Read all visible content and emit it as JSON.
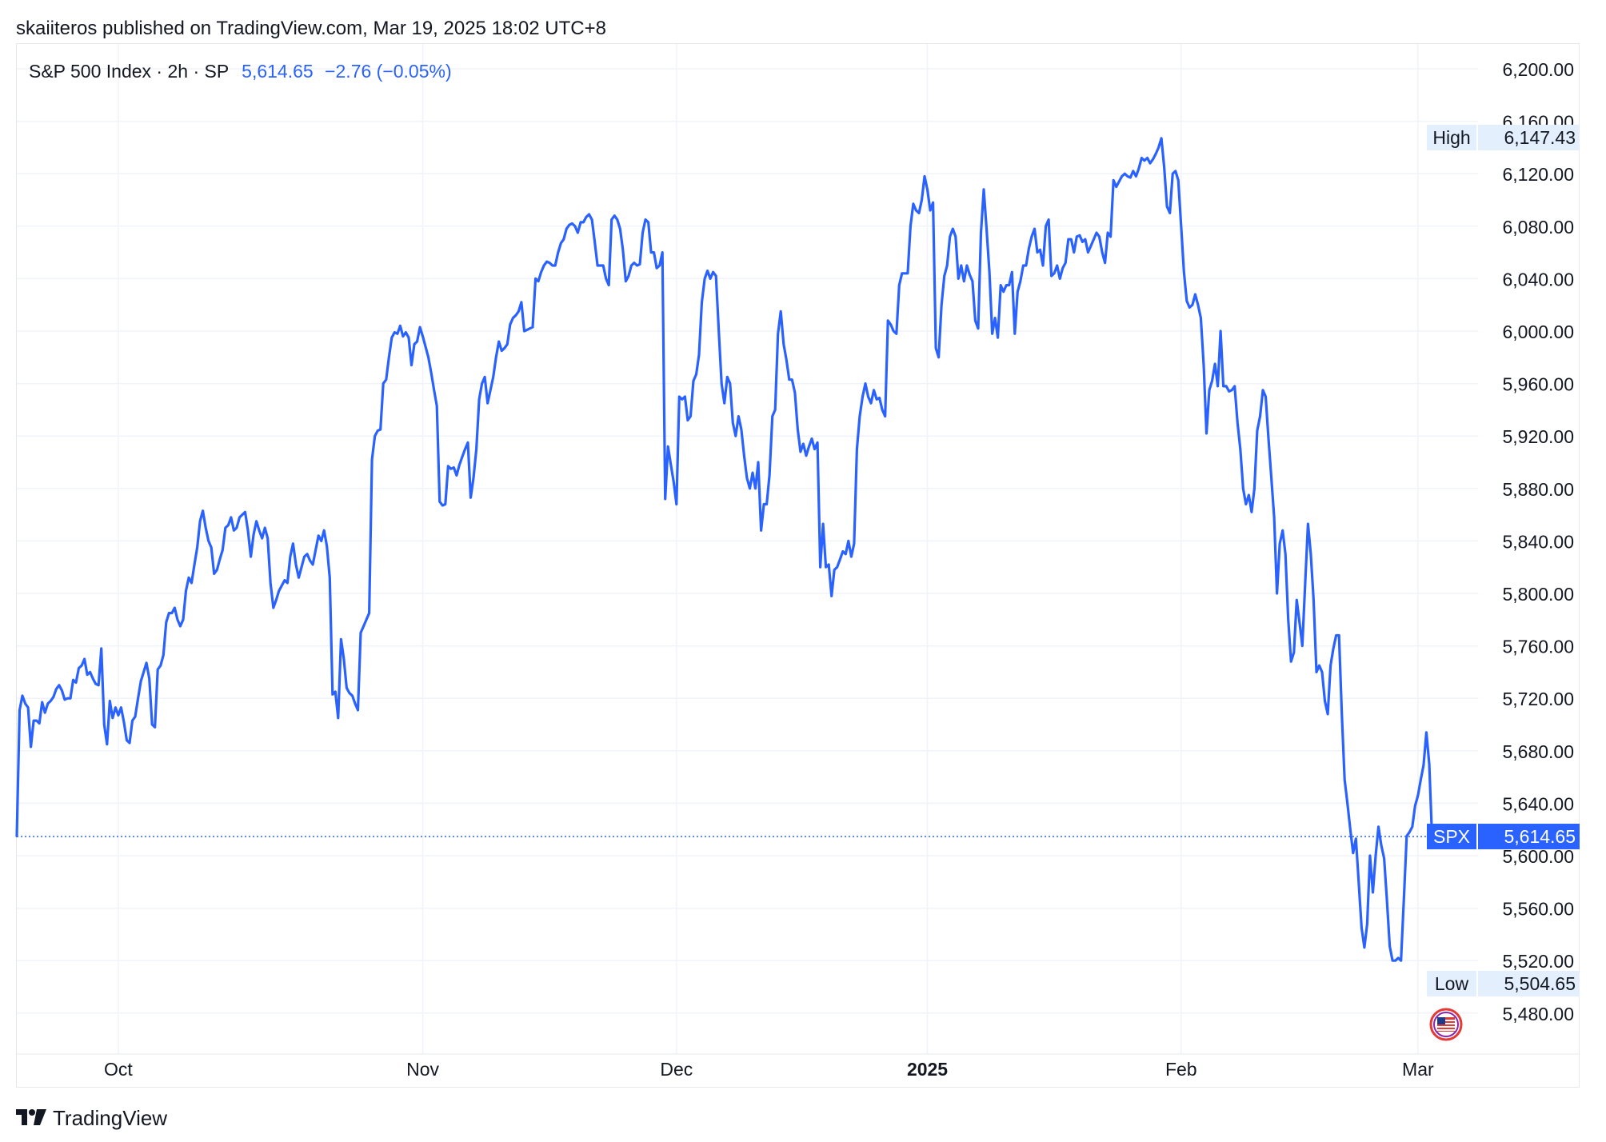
{
  "header": {
    "published_text": "skaiiteros published on TradingView.com, Mar 19, 2025 18:02 UTC+8"
  },
  "legend": {
    "symbol_text": "S&P 500 Index · 2h · SP",
    "last_price": "5,614.65",
    "change": "−2.76 (−0.05%)"
  },
  "footer": {
    "brand": "TradingView"
  },
  "colors": {
    "line": "#2962ff",
    "grid": "#f0f3fa",
    "text": "#131722",
    "tag_bg": "#e3effd"
  },
  "chart_data": {
    "type": "line",
    "title": "S&P 500 Index · 2h · SP",
    "xlabel": "",
    "ylabel": "",
    "ylim": [
      5455,
      6230
    ],
    "y_ticks": [
      "6,200.00",
      "6,160.00",
      "6,120.00",
      "6,080.00",
      "6,040.00",
      "6,000.00",
      "5,960.00",
      "5,920.00",
      "5,880.00",
      "5,840.00",
      "5,800.00",
      "5,760.00",
      "5,720.00",
      "5,680.00",
      "5,640.00",
      "5,600.00",
      "5,560.00",
      "5,520.00",
      "5,480.00"
    ],
    "x_ticks": [
      {
        "label": "Oct",
        "index": 36
      },
      {
        "label": "Nov",
        "index": 144
      },
      {
        "label": "Dec",
        "index": 234
      },
      {
        "label": "2025",
        "index": 323
      },
      {
        "label": "Feb",
        "index": 413
      },
      {
        "label": "Mar",
        "index": 497
      }
    ],
    "high": {
      "label": "High",
      "value": 6147.43
    },
    "low": {
      "label": "Low",
      "value": 5504.65
    },
    "last": {
      "label": "SPX",
      "value": 5614.65
    },
    "series": [
      {
        "name": "SPX",
        "values": [
          5615,
          5711,
          5722,
          5716,
          5713,
          5683,
          5703,
          5703,
          5701,
          5717,
          5709,
          5716,
          5718,
          5721,
          5727,
          5730,
          5726,
          5719,
          5720,
          5720,
          5734,
          5732,
          5743,
          5745,
          5750,
          5738,
          5740,
          5735,
          5731,
          5730,
          5758,
          5700,
          5685,
          5718,
          5705,
          5713,
          5707,
          5713,
          5702,
          5688,
          5686,
          5703,
          5706,
          5720,
          5733,
          5740,
          5747,
          5735,
          5700,
          5698,
          5742,
          5745,
          5753,
          5778,
          5785,
          5785,
          5789,
          5780,
          5775,
          5780,
          5802,
          5812,
          5808,
          5822,
          5835,
          5855,
          5863,
          5850,
          5840,
          5835,
          5815,
          5818,
          5826,
          5833,
          5850,
          5852,
          5858,
          5848,
          5850,
          5858,
          5860,
          5862,
          5848,
          5828,
          5845,
          5855,
          5848,
          5842,
          5850,
          5842,
          5808,
          5789,
          5795,
          5802,
          5806,
          5810,
          5808,
          5828,
          5838,
          5822,
          5812,
          5820,
          5828,
          5830,
          5825,
          5822,
          5833,
          5844,
          5840,
          5848,
          5836,
          5812,
          5723,
          5725,
          5705,
          5765,
          5750,
          5728,
          5724,
          5722,
          5716,
          5711,
          5770,
          5775,
          5780,
          5785,
          5902,
          5920,
          5924,
          5925,
          5960,
          5963,
          5980,
          5995,
          5999,
          5998,
          6004,
          5996,
          5999,
          5995,
          5974,
          5990,
          5992,
          6003,
          5996,
          5988,
          5980,
          5968,
          5955,
          5943,
          5870,
          5867,
          5868,
          5897,
          5895,
          5896,
          5890,
          5898,
          5904,
          5910,
          5915,
          5873,
          5888,
          5910,
          5948,
          5960,
          5965,
          5945,
          5955,
          5965,
          5980,
          5992,
          5985,
          5987,
          5990,
          6005,
          6010,
          6012,
          6015,
          6022,
          6000,
          6001,
          6002,
          6003,
          6040,
          6038,
          6045,
          6050,
          6053,
          6052,
          6050,
          6050,
          6060,
          6067,
          6070,
          6078,
          6081,
          6082,
          6080,
          6075,
          6083,
          6083,
          6087,
          6089,
          6085,
          6068,
          6050,
          6050,
          6050,
          6040,
          6035,
          6085,
          6088,
          6085,
          6078,
          6062,
          6038,
          6042,
          6050,
          6052,
          6050,
          6051,
          6075,
          6085,
          6083,
          6060,
          6060,
          6048,
          6050,
          6060,
          5872,
          5912,
          5898,
          5885,
          5868,
          5950,
          5948,
          5950,
          5932,
          5935,
          5962,
          5967,
          5982,
          6022,
          6040,
          6046,
          6040,
          6045,
          6042,
          6000,
          5960,
          5945,
          5965,
          5960,
          5930,
          5920,
          5935,
          5925,
          5905,
          5888,
          5880,
          5892,
          5880,
          5900,
          5848,
          5868,
          5868,
          5890,
          5935,
          5940,
          5998,
          6015,
          5990,
          5978,
          5963,
          5963,
          5953,
          5925,
          5908,
          5914,
          5905,
          5912,
          5918,
          5910,
          5915,
          5820,
          5853,
          5820,
          5822,
          5798,
          5818,
          5820,
          5826,
          5832,
          5830,
          5840,
          5828,
          5838,
          5910,
          5935,
          5950,
          5960,
          5950,
          5945,
          5955,
          5948,
          5949,
          5940,
          5935,
          6008,
          6005,
          6000,
          5998,
          6035,
          6044,
          6044,
          6044,
          6080,
          6097,
          6092,
          6090,
          6100,
          6118,
          6108,
          6092,
          6098,
          5987,
          5980,
          6020,
          6042,
          6050,
          6072,
          6078,
          6072,
          6040,
          6050,
          6038,
          6050,
          6043,
          6038,
          6008,
          6002,
          6075,
          6108,
          6078,
          6045,
          5998,
          6010,
          5995,
          6035,
          6030,
          6035,
          6035,
          6045,
          5998,
          6030,
          6038,
          6050,
          6050,
          6063,
          6072,
          6078,
          6060,
          6062,
          6050,
          6080,
          6085,
          6042,
          6044,
          6050,
          6040,
          6048,
          6052,
          6070,
          6070,
          6060,
          6072,
          6073,
          6068,
          6070,
          6060,
          6065,
          6070,
          6075,
          6072,
          6060,
          6052,
          6075,
          6072,
          6115,
          6110,
          6114,
          6118,
          6120,
          6118,
          6117,
          6122,
          6118,
          6124,
          6132,
          6130,
          6132,
          6128,
          6131,
          6135,
          6140,
          6147,
          6125,
          6095,
          6090,
          6120,
          6122,
          6115,
          6080,
          6045,
          6023,
          6018,
          6020,
          6028,
          6020,
          6010,
          5974,
          5922,
          5955,
          5962,
          5975,
          5958,
          6000,
          5958,
          5958,
          5954,
          5955,
          5958,
          5930,
          5910,
          5880,
          5868,
          5875,
          5862,
          5880,
          5924,
          5935,
          5955,
          5950,
          5918,
          5888,
          5858,
          5800,
          5838,
          5848,
          5830,
          5780,
          5748,
          5755,
          5795,
          5778,
          5760,
          5808,
          5853,
          5830,
          5795,
          5740,
          5745,
          5740,
          5718,
          5708,
          5745,
          5758,
          5768,
          5768,
          5708,
          5658,
          5640,
          5620,
          5602,
          5613,
          5580,
          5545,
          5530,
          5548,
          5600,
          5572,
          5600,
          5622,
          5608,
          5598,
          5566,
          5531,
          5520,
          5520,
          5522,
          5520,
          5566,
          5615,
          5618,
          5622,
          5638,
          5646,
          5658,
          5669,
          5694,
          5670,
          5614,
          5614
        ]
      }
    ]
  }
}
